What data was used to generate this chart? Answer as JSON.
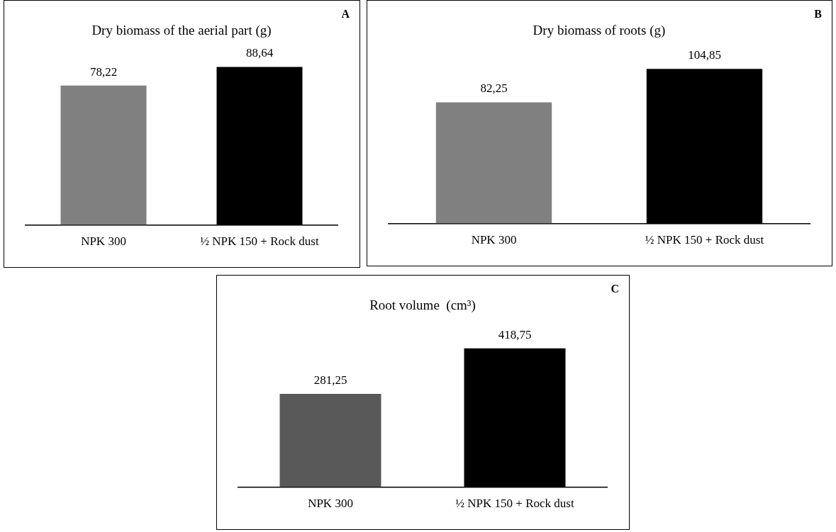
{
  "chart_data": [
    {
      "type": "bar",
      "title": "Dry biomass of the aerial part (g)",
      "categories": [
        "NPK 300",
        "½ NPK 150 + Rock dust"
      ],
      "values": [
        78.22,
        88.64
      ],
      "value_labels": [
        "78,22",
        "88,64"
      ],
      "colors": [
        "#808080",
        "#000000"
      ],
      "annotations": [
        "A"
      ]
    },
    {
      "type": "bar",
      "title": "Dry biomass of roots (g)",
      "categories": [
        "NPK 300",
        "½ NPK 150 + Rock dust"
      ],
      "values": [
        82.25,
        104.85
      ],
      "value_labels": [
        "82,25",
        "104,85"
      ],
      "colors": [
        "#808080",
        "#000000"
      ],
      "annotations": [
        "B"
      ]
    },
    {
      "type": "bar",
      "title": "Root volume  (cm³)",
      "categories": [
        "NPK 300",
        "½ NPK 150 + Rock dust"
      ],
      "values": [
        281.25,
        418.75
      ],
      "value_labels": [
        "281,25",
        "418,75"
      ],
      "colors": [
        "#595959",
        "#000000"
      ],
      "annotations": [
        "C"
      ]
    }
  ]
}
